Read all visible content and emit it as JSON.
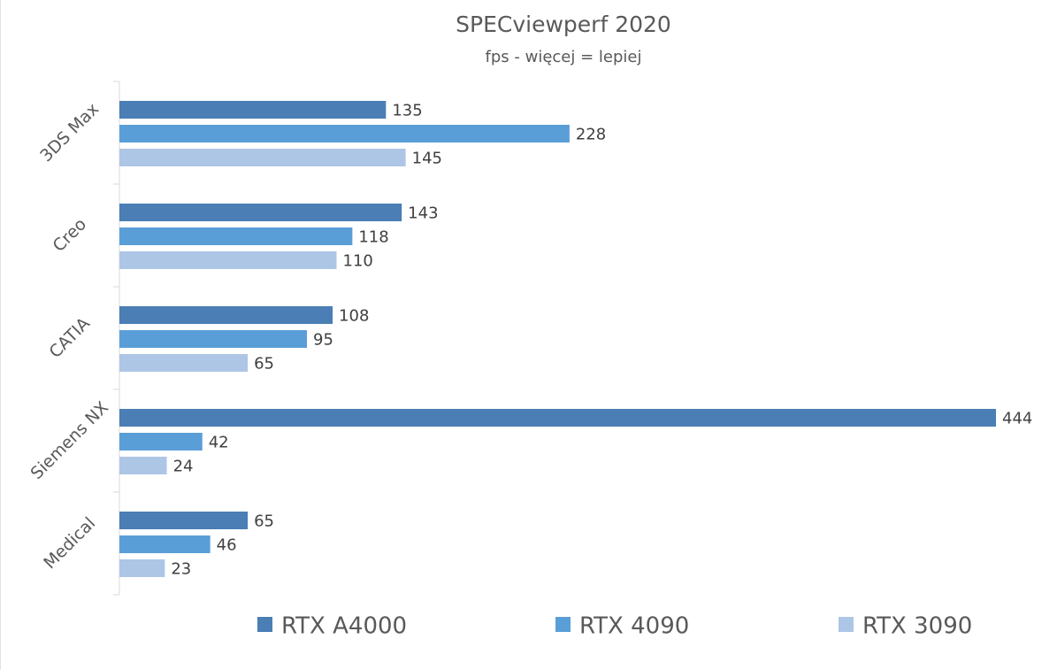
{
  "chart_data": {
    "type": "bar",
    "orientation": "horizontal",
    "title": "SPECviewperf 2020",
    "subtitle": "fps - więcej = lepiej",
    "categories": [
      "3DS Max",
      "Creo",
      "CATIA",
      "Siemens NX",
      "Medical"
    ],
    "series": [
      {
        "name": "RTX A4000",
        "color": "#4a7eb4",
        "values": [
          135,
          143,
          108,
          444,
          65
        ]
      },
      {
        "name": "RTX 4090",
        "color": "#5a9ed8",
        "values": [
          228,
          118,
          95,
          42,
          46
        ]
      },
      {
        "name": "RTX 3090",
        "color": "#aec6e6",
        "values": [
          145,
          110,
          65,
          24,
          23
        ]
      }
    ],
    "xlim": [
      0,
      444
    ],
    "grid": false,
    "data_labels": true,
    "legend_position": "bottom"
  }
}
